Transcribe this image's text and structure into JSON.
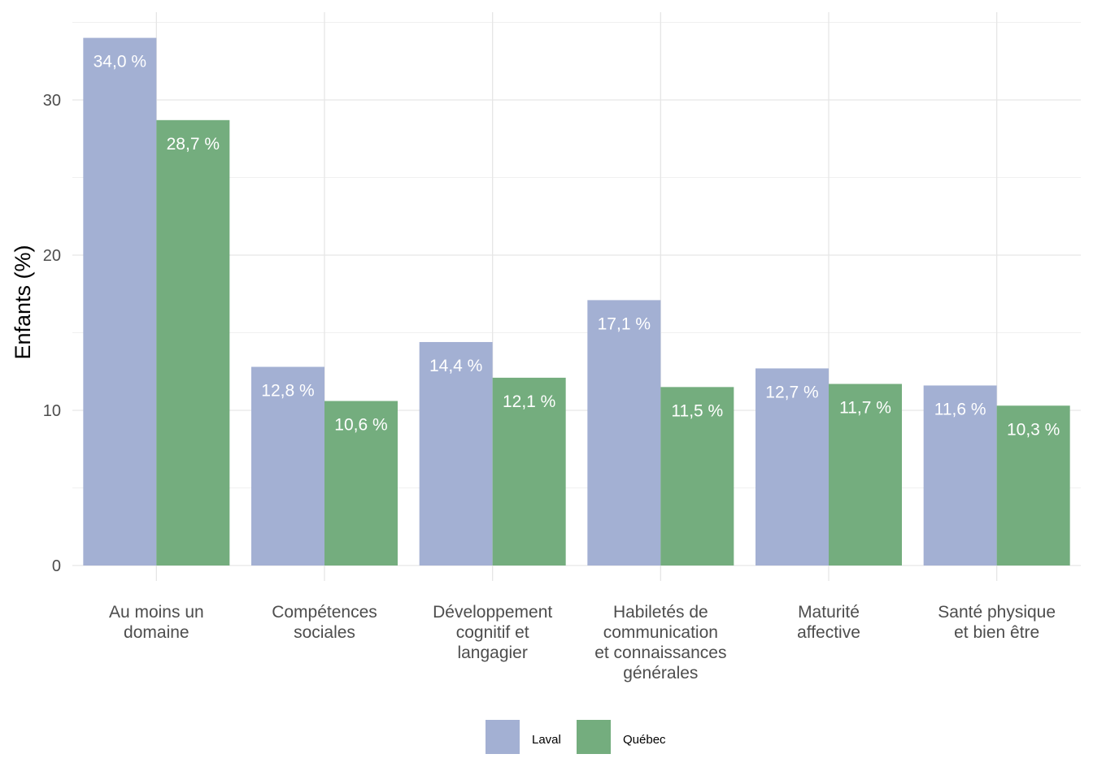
{
  "chart_data": {
    "type": "bar",
    "ylabel": "Enfants (%)",
    "xlabel": "",
    "ylim": [
      0,
      35
    ],
    "yticks": [
      0,
      10,
      20,
      30
    ],
    "grid": true,
    "legend_position": "bottom",
    "categories": [
      [
        "Au moins un",
        "domaine"
      ],
      [
        "Compétences",
        "sociales"
      ],
      [
        "Développement",
        "cognitif et",
        "langagier"
      ],
      [
        "Habiletés de",
        "communication",
        "et connaissances",
        "générales"
      ],
      [
        "Maturité",
        "affective"
      ],
      [
        "Santé physique",
        "et bien être"
      ]
    ],
    "series": [
      {
        "name": "Laval",
        "color": "#a3b0d3",
        "values": [
          34.0,
          12.8,
          14.4,
          17.1,
          12.7,
          11.6
        ],
        "labels": [
          "34,0 %",
          "12,8 %",
          "14,4 %",
          "17,1 %",
          "12,7 %",
          "11,6 %"
        ]
      },
      {
        "name": "Québec",
        "color": "#74ad7e",
        "values": [
          28.7,
          10.6,
          12.1,
          11.5,
          11.7,
          10.3
        ],
        "labels": [
          "28,7 %",
          "10,6 %",
          "12,1 %",
          "11,5 %",
          "11,7 %",
          "10,3 %"
        ]
      }
    ]
  }
}
